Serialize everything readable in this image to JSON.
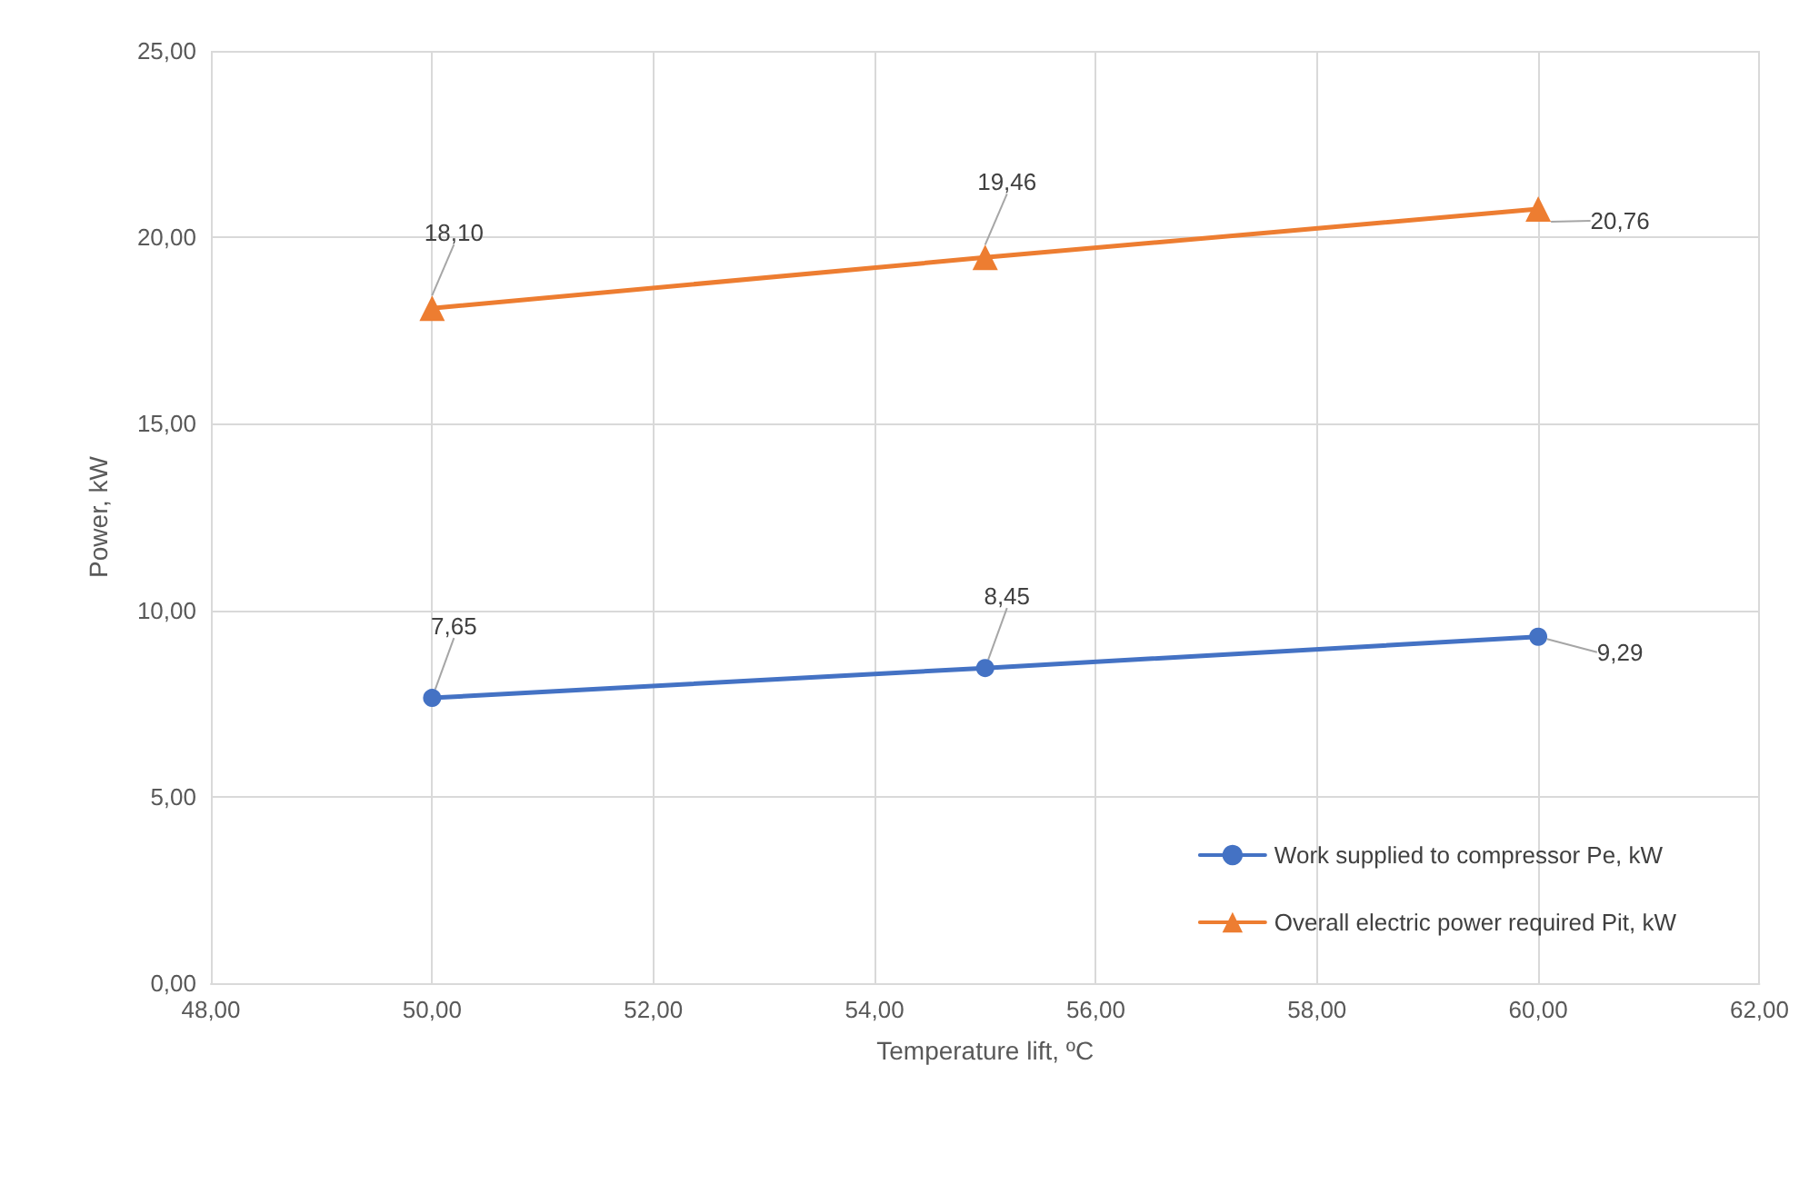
{
  "chart_data": {
    "type": "line",
    "xlabel": "Temperature lift, ºC",
    "ylabel": "Power, kW",
    "x": [
      50,
      55,
      60
    ],
    "series": [
      {
        "name": "Work supplied to compressor Pe, kW",
        "color": "#4472c4",
        "marker": "circle",
        "values": [
          7.65,
          8.45,
          9.29
        ],
        "value_labels": [
          "7,65",
          "8,45",
          "9,29"
        ]
      },
      {
        "name": "Overall electric power required Pit, kW",
        "color": "#ed7d31",
        "marker": "triangle",
        "values": [
          18.1,
          19.46,
          20.76
        ],
        "value_labels": [
          "18,10",
          "19,46",
          "20,76"
        ]
      }
    ],
    "xlim": [
      48,
      62
    ],
    "xticks": [
      {
        "value": 48,
        "label": "48,00"
      },
      {
        "value": 50,
        "label": "50,00"
      },
      {
        "value": 52,
        "label": "52,00"
      },
      {
        "value": 54,
        "label": "54,00"
      },
      {
        "value": 56,
        "label": "56,00"
      },
      {
        "value": 58,
        "label": "58,00"
      },
      {
        "value": 60,
        "label": "60,00"
      },
      {
        "value": 62,
        "label": "62,00"
      }
    ],
    "ylim": [
      0,
      25
    ],
    "yticks": [
      {
        "value": 0,
        "label": "0,00"
      },
      {
        "value": 5,
        "label": "5,00"
      },
      {
        "value": 10,
        "label": "10,00"
      },
      {
        "value": 15,
        "label": "15,00"
      },
      {
        "value": 20,
        "label": "20,00"
      },
      {
        "value": 25,
        "label": "25,00"
      }
    ],
    "grid": true,
    "legend": "bottom right",
    "line_style": "solid"
  }
}
